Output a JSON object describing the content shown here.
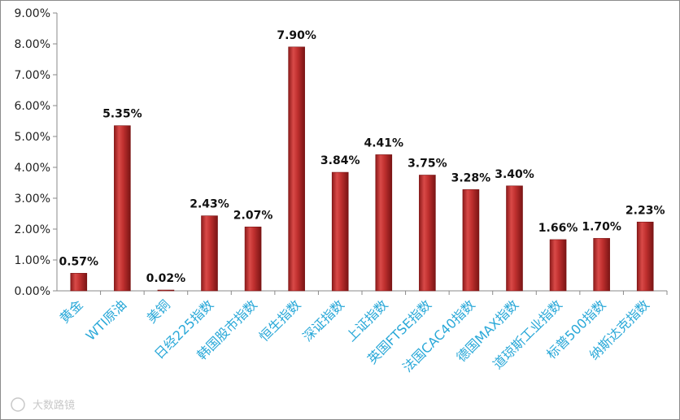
{
  "chart_data": {
    "type": "bar",
    "title": "",
    "xlabel": "",
    "ylabel": "",
    "categories": [
      "黄金",
      "WTI原油",
      "美铜",
      "日经225指数",
      "韩国股市指数",
      "恒生指数",
      "深证指数",
      "上证指数",
      "英国FTSE指数",
      "法国CAC40指数",
      "德国MAX指数",
      "道琼斯工业指数",
      "标普500指数",
      "纳斯达克指数"
    ],
    "values": [
      0.57,
      5.35,
      0.02,
      2.43,
      2.07,
      7.9,
      3.84,
      4.41,
      3.75,
      3.28,
      3.4,
      1.66,
      1.7,
      2.23
    ],
    "data_labels": [
      "0.57%",
      "5.35%",
      "0.02%",
      "2.43%",
      "2.07%",
      "7.90%",
      "3.84%",
      "4.41%",
      "3.75%",
      "3.28%",
      "3.40%",
      "1.66%",
      "1.70%",
      "2.23%"
    ],
    "ylim": [
      0,
      9
    ],
    "yticks": [
      "0.00%",
      "1.00%",
      "2.00%",
      "3.00%",
      "4.00%",
      "5.00%",
      "6.00%",
      "7.00%",
      "8.00%",
      "9.00%"
    ],
    "grid": false,
    "legend": "none",
    "bar_color": "#c0302f",
    "label_color": "#29a8d8"
  },
  "watermark": "大数路镜"
}
